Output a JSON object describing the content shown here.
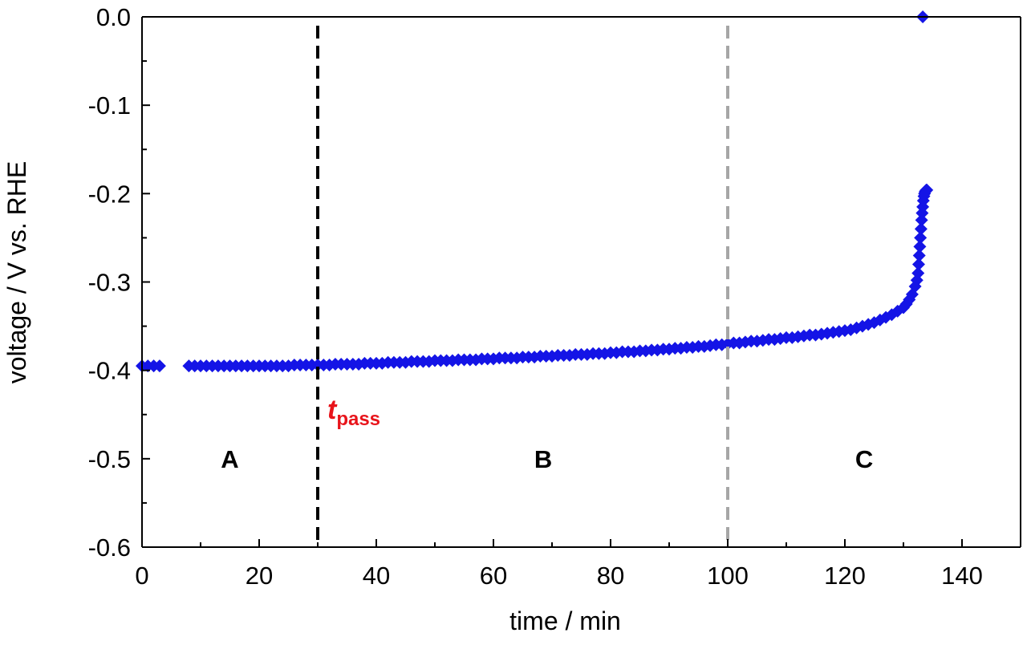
{
  "chart_data": {
    "type": "scatter",
    "xlabel": "time / min",
    "ylabel": "voltage / V vs. RHE",
    "xlim": [
      0,
      150
    ],
    "ylim": [
      -0.6,
      0.0
    ],
    "x_ticks": [
      0,
      20,
      40,
      60,
      80,
      100,
      120,
      140
    ],
    "y_ticks": [
      0.0,
      -0.1,
      -0.2,
      -0.3,
      -0.4,
      -0.5,
      -0.6
    ],
    "x_tick_labels": [
      "0",
      "20",
      "40",
      "60",
      "80",
      "100",
      "120",
      "140"
    ],
    "y_tick_labels": [
      "0.0",
      "-0.1",
      "-0.2",
      "-0.3",
      "-0.4",
      "-0.5",
      "-0.6"
    ],
    "grid": false,
    "legend": "none",
    "marker_color": "#1414e6",
    "marker": "diamond",
    "series": [
      {
        "x": [
          0,
          1,
          2,
          3,
          8,
          9,
          10,
          11,
          12,
          13,
          14,
          15,
          16,
          17,
          18,
          19,
          20,
          21,
          22,
          23,
          24,
          25,
          26,
          27,
          28,
          29,
          30,
          31,
          32,
          33,
          34,
          35,
          36,
          37,
          38,
          39,
          40,
          41,
          42,
          43,
          44,
          45,
          46,
          47,
          48,
          49,
          50,
          51,
          52,
          53,
          54,
          55,
          56,
          57,
          58,
          59,
          60,
          61,
          62,
          63,
          64,
          65,
          66,
          67,
          68,
          69,
          70,
          71,
          72,
          73,
          74,
          75,
          76,
          77,
          78,
          79,
          80,
          81,
          82,
          83,
          84,
          85,
          86,
          87,
          88,
          89,
          90,
          91,
          92,
          93,
          94,
          95,
          96,
          97,
          98,
          99,
          100,
          101,
          102,
          103,
          104,
          105,
          106,
          107,
          108,
          109,
          110,
          111,
          112,
          113,
          114,
          115,
          116,
          117,
          118,
          119,
          120,
          121,
          122,
          123,
          124,
          125,
          126,
          127,
          128,
          129,
          130,
          130.5,
          131,
          131.5,
          132,
          132.3,
          132.5,
          132.6,
          132.7,
          132.8,
          132.9,
          133.0,
          133.1,
          133.2,
          133.3,
          133.4,
          133.5,
          133.6,
          133.7,
          133.8,
          133.9,
          134.0,
          133.3
        ],
        "y": [
          -0.395,
          -0.395,
          -0.395,
          -0.395,
          -0.395,
          -0.395,
          -0.395,
          -0.395,
          -0.395,
          -0.395,
          -0.395,
          -0.395,
          -0.395,
          -0.395,
          -0.395,
          -0.395,
          -0.395,
          -0.395,
          -0.395,
          -0.395,
          -0.395,
          -0.395,
          -0.394,
          -0.394,
          -0.394,
          -0.394,
          -0.394,
          -0.394,
          -0.394,
          -0.393,
          -0.393,
          -0.393,
          -0.393,
          -0.393,
          -0.392,
          -0.392,
          -0.392,
          -0.392,
          -0.391,
          -0.391,
          -0.391,
          -0.391,
          -0.39,
          -0.39,
          -0.39,
          -0.39,
          -0.389,
          -0.389,
          -0.389,
          -0.389,
          -0.388,
          -0.388,
          -0.388,
          -0.388,
          -0.387,
          -0.387,
          -0.387,
          -0.386,
          -0.386,
          -0.386,
          -0.386,
          -0.385,
          -0.385,
          -0.385,
          -0.384,
          -0.384,
          -0.384,
          -0.383,
          -0.383,
          -0.383,
          -0.382,
          -0.382,
          -0.382,
          -0.381,
          -0.381,
          -0.381,
          -0.38,
          -0.38,
          -0.379,
          -0.379,
          -0.379,
          -0.378,
          -0.378,
          -0.377,
          -0.377,
          -0.376,
          -0.376,
          -0.375,
          -0.375,
          -0.374,
          -0.374,
          -0.373,
          -0.373,
          -0.372,
          -0.371,
          -0.371,
          -0.37,
          -0.369,
          -0.369,
          -0.368,
          -0.367,
          -0.367,
          -0.366,
          -0.365,
          -0.365,
          -0.364,
          -0.363,
          -0.363,
          -0.362,
          -0.361,
          -0.36,
          -0.36,
          -0.359,
          -0.358,
          -0.357,
          -0.356,
          -0.355,
          -0.354,
          -0.352,
          -0.35,
          -0.348,
          -0.346,
          -0.343,
          -0.34,
          -0.337,
          -0.333,
          -0.329,
          -0.325,
          -0.32,
          -0.314,
          -0.305,
          -0.298,
          -0.29,
          -0.28,
          -0.27,
          -0.26,
          -0.25,
          -0.24,
          -0.23,
          -0.222,
          -0.215,
          -0.208,
          -0.203,
          -0.2,
          -0.198,
          -0.197,
          -0.196,
          -0.196,
          0.0
        ]
      }
    ],
    "annotations": [
      {
        "type": "vline",
        "x": 30,
        "color": "#000000",
        "style": "dashed"
      },
      {
        "type": "vline",
        "x": 100,
        "color": "#a6a6a6",
        "style": "dashed"
      },
      {
        "type": "text",
        "text": "A",
        "x": 15,
        "y": -0.5
      },
      {
        "type": "text",
        "text": "B",
        "x": 68.5,
        "y": -0.5
      },
      {
        "type": "text",
        "text": "C",
        "x": 123.3,
        "y": -0.5
      }
    ],
    "tpass_label": {
      "main": "t",
      "sub": "pass",
      "color": "#e8141b"
    }
  }
}
